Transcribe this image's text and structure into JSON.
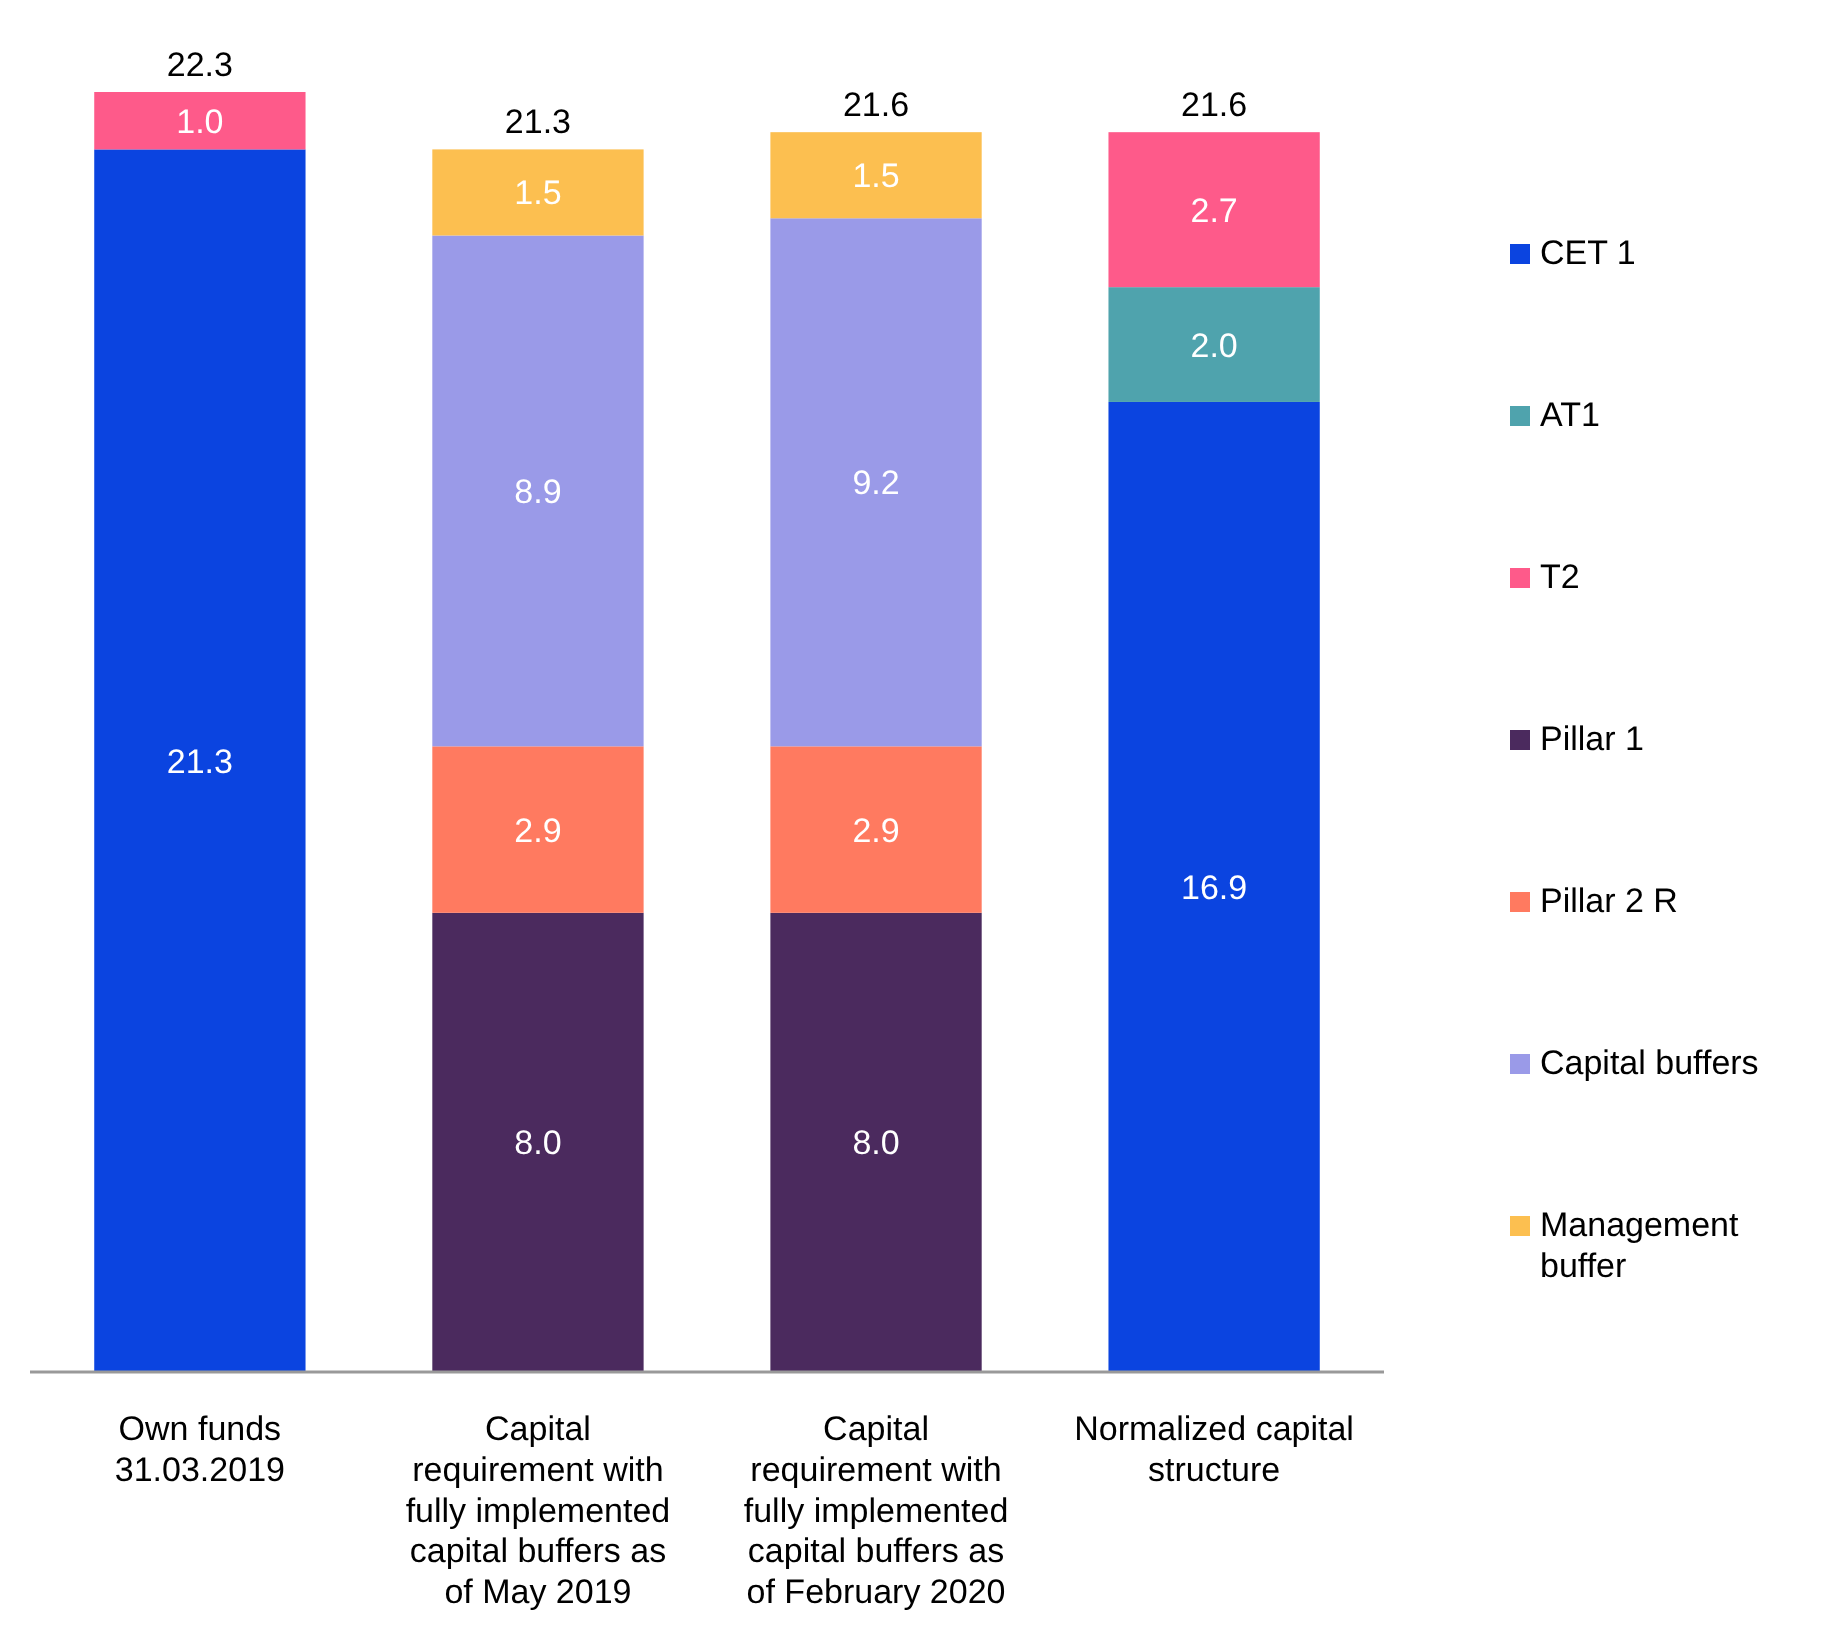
{
  "chart_data": {
    "type": "bar",
    "stacked": true,
    "legend": "right",
    "categories": [
      "Own funds 31.03.2019",
      "Capital requirement with fully implemented capital buffers as of May 2019",
      "Capital requirement with fully implemented capital buffers as of February 2020",
      "Normalized capital structure"
    ],
    "series": [
      {
        "name": "CET 1",
        "color": "#0b44e0",
        "values": [
          21.3,
          null,
          null,
          16.9
        ],
        "value_labels": [
          "21.3",
          null,
          null,
          "16.9"
        ]
      },
      {
        "name": "AT1",
        "color": "#4fa3ad",
        "values": [
          null,
          null,
          null,
          2.0
        ],
        "value_labels": [
          null,
          null,
          null,
          "2.0"
        ]
      },
      {
        "name": "T2",
        "color": "#fe5a8a",
        "values": [
          1.0,
          null,
          null,
          2.7
        ],
        "value_labels": [
          "1.0",
          null,
          null,
          "2.7"
        ]
      },
      {
        "name": "Pillar 1",
        "color": "#4b2a5e",
        "values": [
          null,
          8.0,
          8.0,
          null
        ],
        "value_labels": [
          null,
          "8.0",
          "8.0",
          null
        ]
      },
      {
        "name": "Pillar 2 R",
        "color": "#ff7a60",
        "values": [
          null,
          2.9,
          2.9,
          null
        ],
        "value_labels": [
          null,
          "2.9",
          "2.9",
          null
        ]
      },
      {
        "name": "Capital buffers",
        "color": "#9a9ae8",
        "values": [
          null,
          8.9,
          9.2,
          null
        ],
        "value_labels": [
          null,
          "8.9",
          "9.2",
          null
        ]
      },
      {
        "name": "Management buffer",
        "color": "#fcbf50",
        "values": [
          null,
          1.5,
          1.5,
          null
        ],
        "value_labels": [
          null,
          "1.5",
          "1.5",
          null
        ]
      }
    ],
    "totals": [
      "22.3",
      "21.3",
      "21.6",
      "21.6"
    ]
  }
}
